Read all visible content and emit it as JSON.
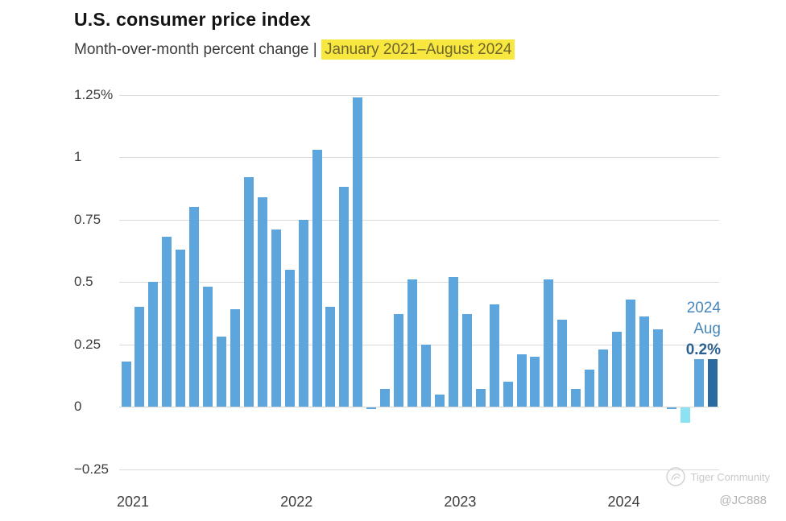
{
  "header": {
    "title": "U.S. consumer price index",
    "subtitle_prefix": "Month-over-month percent change | ",
    "subtitle_highlight": "January 2021–August 2024"
  },
  "chart_data": {
    "type": "bar",
    "title": "U.S. consumer price index",
    "subtitle": "Month-over-month percent change | January 2021–August 2024",
    "unit": "percent",
    "ylim": [
      -0.25,
      1.25
    ],
    "grid": true,
    "legend": false,
    "y_ticks": [
      "1.25%",
      "1",
      "0.75",
      "0.5",
      "0.25",
      "0",
      "−0.25"
    ],
    "y_tick_values": [
      1.25,
      1,
      0.75,
      0.5,
      0.25,
      0,
      -0.25
    ],
    "x_year_labels": [
      "2021",
      "2022",
      "2023",
      "2024"
    ],
    "months": [
      "Jan 2021",
      "Feb 2021",
      "Mar 2021",
      "Apr 2021",
      "May 2021",
      "Jun 2021",
      "Jul 2021",
      "Aug 2021",
      "Sep 2021",
      "Oct 2021",
      "Nov 2021",
      "Dec 2021",
      "Jan 2022",
      "Feb 2022",
      "Mar 2022",
      "Apr 2022",
      "May 2022",
      "Jun 2022",
      "Jul 2022",
      "Aug 2022",
      "Sep 2022",
      "Oct 2022",
      "Nov 2022",
      "Dec 2022",
      "Jan 2023",
      "Feb 2023",
      "Mar 2023",
      "Apr 2023",
      "May 2023",
      "Jun 2023",
      "Jul 2023",
      "Aug 2023",
      "Sep 2023",
      "Oct 2023",
      "Nov 2023",
      "Dec 2023",
      "Jan 2024",
      "Feb 2024",
      "Mar 2024",
      "Apr 2024",
      "May 2024",
      "Jun 2024",
      "Jul 2024",
      "Aug 2024"
    ],
    "values": [
      0.18,
      0.4,
      0.5,
      0.68,
      0.63,
      0.8,
      0.48,
      0.28,
      0.39,
      0.92,
      0.84,
      0.71,
      0.55,
      0.75,
      1.03,
      0.4,
      0.88,
      1.24,
      0.0,
      0.07,
      0.37,
      0.51,
      0.25,
      0.05,
      0.52,
      0.37,
      0.07,
      0.41,
      0.1,
      0.21,
      0.2,
      0.51,
      0.35,
      0.07,
      0.15,
      0.23,
      0.3,
      0.43,
      0.36,
      0.31,
      0.0,
      -0.06,
      0.19,
      0.19
    ],
    "colors": {
      "default": "#5ca6dd",
      "june_2024_negative": "#8de2f1",
      "august_2024_latest": "#2b6a9e"
    },
    "special_color_indices": {
      "41": "june_2024_negative",
      "43": "august_2024_latest"
    },
    "annotation": {
      "year": "2024",
      "month": "Aug",
      "value": "0.2%"
    }
  },
  "watermark": {
    "brand": "Tiger Community",
    "handle": "@JC888"
  }
}
